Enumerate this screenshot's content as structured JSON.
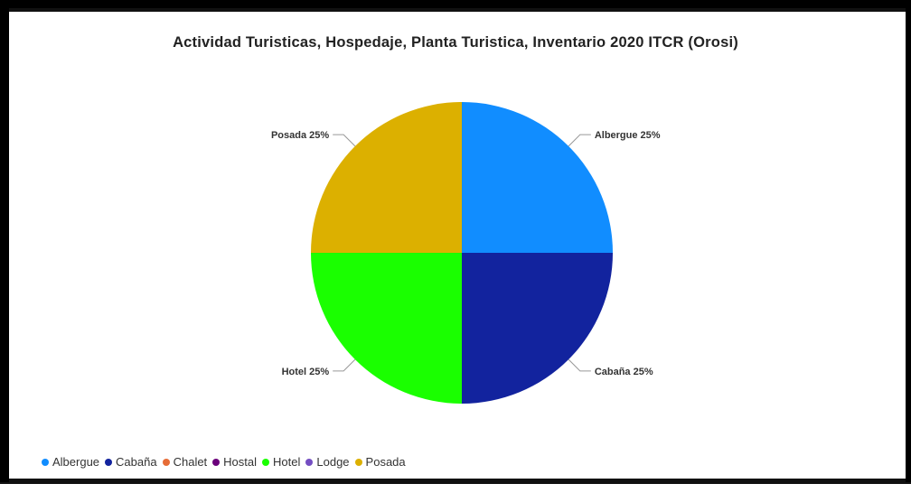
{
  "chart_data": {
    "type": "pie",
    "title": "Actividad Turisticas, Hospedaje, Planta Turistica, Inventario 2020 ITCR (Orosi)",
    "slices": [
      {
        "label": "Albergue",
        "value": 25,
        "percent_label": "Albergue 25%",
        "color": "#118dff"
      },
      {
        "label": "Cabaña",
        "value": 25,
        "percent_label": "Cabaña 25%",
        "color": "#12239e"
      },
      {
        "label": "Hotel",
        "value": 25,
        "percent_label": "Hotel 25%",
        "color": "#1aff00"
      },
      {
        "label": "Posada",
        "value": 25,
        "percent_label": "Posada 25%",
        "color": "#dcb000"
      }
    ],
    "legend": [
      {
        "label": "Albergue",
        "color": "#118dff"
      },
      {
        "label": "Cabaña",
        "color": "#12239e"
      },
      {
        "label": "Chalet",
        "color": "#e66c37"
      },
      {
        "label": "Hostal",
        "color": "#6b007b"
      },
      {
        "label": "Hotel",
        "color": "#1aff00"
      },
      {
        "label": "Lodge",
        "color": "#744ec2"
      },
      {
        "label": "Posada",
        "color": "#dcb000"
      }
    ],
    "legend_position": "bottom-left"
  }
}
